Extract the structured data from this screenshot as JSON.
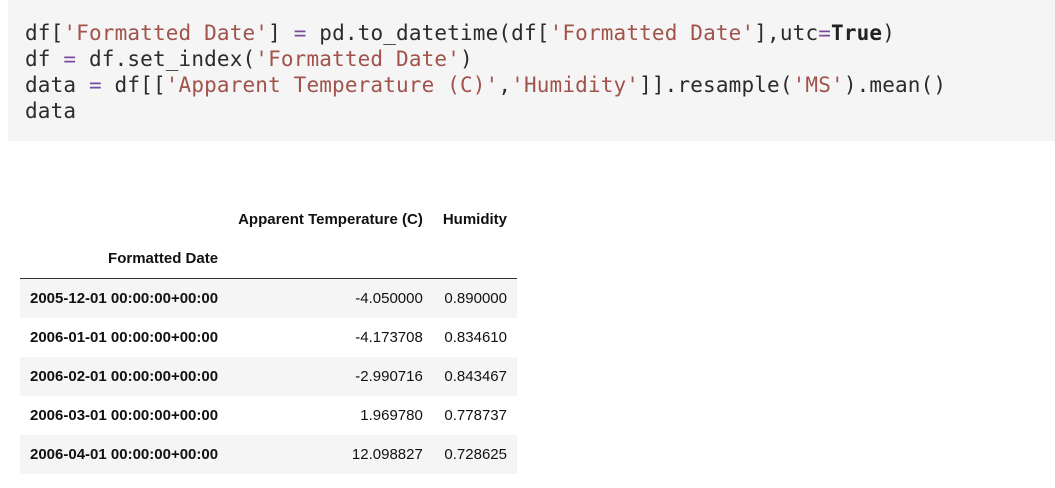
{
  "code": {
    "line1": {
      "p1": "df[",
      "s1": "'Formatted Date'",
      "p2": "] ",
      "op1": "=",
      "p3": " pd.to_datetime(df[",
      "s2": "'Formatted Date'",
      "p4": "],utc",
      "op2": "=",
      "kw": "True",
      "p5": ")"
    },
    "line2": {
      "p1": "df ",
      "op1": "=",
      "p2": " df.set_index(",
      "s1": "'Formatted Date'",
      "p3": ")"
    },
    "line3": {
      "p1": "data ",
      "op1": "=",
      "p2": " df[[",
      "s1": "'Apparent Temperature (C)'",
      "p3": ",",
      "s2": "'Humidity'",
      "p4": "]].resample(",
      "s3": "'MS'",
      "p5": ").mean()"
    },
    "line4": "data"
  },
  "table": {
    "columns": [
      "Apparent Temperature (C)",
      "Humidity"
    ],
    "index_name": "Formatted Date",
    "rows": [
      {
        "index": "2005-12-01 00:00:00+00:00",
        "temp": "-4.050000",
        "humidity": "0.890000"
      },
      {
        "index": "2006-01-01 00:00:00+00:00",
        "temp": "-4.173708",
        "humidity": "0.834610"
      },
      {
        "index": "2006-02-01 00:00:00+00:00",
        "temp": "-2.990716",
        "humidity": "0.843467"
      },
      {
        "index": "2006-03-01 00:00:00+00:00",
        "temp": "1.969780",
        "humidity": "0.778737"
      },
      {
        "index": "2006-04-01 00:00:00+00:00",
        "temp": "12.098827",
        "humidity": "0.728625"
      }
    ]
  }
}
